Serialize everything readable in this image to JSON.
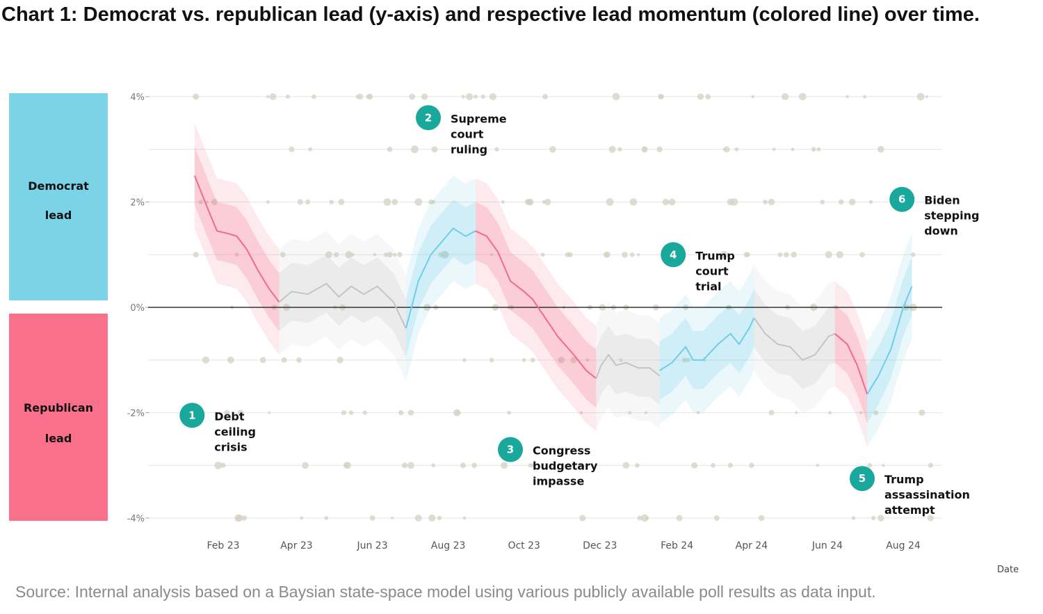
{
  "title": "Chart 1: Democrat vs. republican lead (y-axis) and respective lead momentum (colored line) over time.",
  "source": "Source: Internal analysis based on a Baysian state-space model using various publicly available poll results as data input.",
  "chart_data": {
    "type": "line",
    "xlabel": "Date",
    "ylabel": "",
    "ylim": [
      -4,
      4
    ],
    "xlim": [
      "2023-01-01",
      "2024-08-31"
    ],
    "y_ticks": [
      4,
      2,
      0,
      -2,
      -4
    ],
    "y_tick_labels": [
      "4%",
      "2%",
      "0%",
      "-2%",
      "-4%"
    ],
    "x_ticks": [
      "2023-02-01",
      "2023-04-01",
      "2023-06-01",
      "2023-08-01",
      "2023-10-01",
      "2023-12-01",
      "2024-02-01",
      "2024-04-01",
      "2024-06-01",
      "2024-08-01"
    ],
    "x_tick_labels": [
      "Feb 23",
      "Apr 23",
      "Jun 23",
      "Aug 23",
      "Oct 23",
      "Dec 23",
      "Feb 24",
      "Apr 24",
      "Jun 24",
      "Aug 24"
    ],
    "grid": true,
    "legend": {
      "position": "left",
      "entries": [
        {
          "label_lines": [
            "Democrat",
            "lead"
          ],
          "color": "#7ad3e6"
        },
        {
          "label_lines": [
            "Republican",
            "lead"
          ],
          "color": "#f8708c"
        }
      ]
    },
    "colors": {
      "democrat_momentum": "#6fcde6",
      "republican_momentum": "#f06a8a",
      "neutral": "#c4c4c4",
      "polls": "#d3d1c2",
      "marker": "#1aa89c"
    },
    "segments": [
      {
        "momentum": "republican",
        "points": [
          [
            "2023-01-09",
            2.5
          ],
          [
            "2023-01-20",
            1.85
          ],
          [
            "2023-01-27",
            1.45
          ],
          [
            "2023-02-05",
            1.4
          ],
          [
            "2023-02-12",
            1.35
          ],
          [
            "2023-02-20",
            1.1
          ],
          [
            "2023-03-01",
            0.7
          ],
          [
            "2023-03-10",
            0.35
          ],
          [
            "2023-03-18",
            0.1
          ]
        ]
      },
      {
        "momentum": "neutral",
        "points": [
          [
            "2023-03-18",
            0.1
          ],
          [
            "2023-03-28",
            0.3
          ],
          [
            "2023-04-10",
            0.25
          ],
          [
            "2023-04-25",
            0.45
          ],
          [
            "2023-05-05",
            0.2
          ],
          [
            "2023-05-15",
            0.4
          ],
          [
            "2023-05-25",
            0.25
          ],
          [
            "2023-06-05",
            0.4
          ],
          [
            "2023-06-18",
            0.1
          ],
          [
            "2023-06-28",
            -0.4
          ]
        ]
      },
      {
        "momentum": "democrat",
        "points": [
          [
            "2023-06-28",
            -0.4
          ],
          [
            "2023-07-08",
            0.5
          ],
          [
            "2023-07-18",
            1.0
          ],
          [
            "2023-08-05",
            1.5
          ],
          [
            "2023-08-15",
            1.35
          ],
          [
            "2023-08-23",
            1.45
          ]
        ]
      },
      {
        "momentum": "republican",
        "points": [
          [
            "2023-08-23",
            1.45
          ],
          [
            "2023-09-01",
            1.35
          ],
          [
            "2023-09-10",
            1.05
          ],
          [
            "2023-09-20",
            0.5
          ],
          [
            "2023-10-01",
            0.3
          ],
          [
            "2023-10-08",
            0.15
          ],
          [
            "2023-10-18",
            -0.2
          ],
          [
            "2023-10-28",
            -0.55
          ],
          [
            "2023-11-10",
            -0.9
          ],
          [
            "2023-11-20",
            -1.2
          ],
          [
            "2023-11-28",
            -1.35
          ]
        ]
      },
      {
        "momentum": "neutral",
        "points": [
          [
            "2023-11-28",
            -1.35
          ],
          [
            "2023-12-02",
            -1.1
          ],
          [
            "2023-12-08",
            -0.9
          ],
          [
            "2023-12-14",
            -1.1
          ],
          [
            "2023-12-22",
            -1.05
          ],
          [
            "2024-01-01",
            -1.15
          ],
          [
            "2024-01-10",
            -1.15
          ],
          [
            "2024-01-18",
            -1.3
          ]
        ]
      },
      {
        "momentum": "democrat",
        "points": [
          [
            "2024-01-18",
            -1.2
          ],
          [
            "2024-01-28",
            -1.05
          ],
          [
            "2024-02-08",
            -0.75
          ],
          [
            "2024-02-14",
            -1.0
          ],
          [
            "2024-02-22",
            -1.0
          ],
          [
            "2024-03-05",
            -0.7
          ],
          [
            "2024-03-15",
            -0.5
          ],
          [
            "2024-03-22",
            -0.7
          ],
          [
            "2024-03-30",
            -0.4
          ],
          [
            "2024-04-03",
            -0.2
          ]
        ]
      },
      {
        "momentum": "neutral",
        "points": [
          [
            "2024-04-03",
            -0.2
          ],
          [
            "2024-04-12",
            -0.5
          ],
          [
            "2024-04-22",
            -0.7
          ],
          [
            "2024-05-02",
            -0.75
          ],
          [
            "2024-05-12",
            -1.0
          ],
          [
            "2024-05-22",
            -0.9
          ],
          [
            "2024-06-02",
            -0.55
          ],
          [
            "2024-06-07",
            -0.5
          ]
        ]
      },
      {
        "momentum": "republican",
        "points": [
          [
            "2024-06-07",
            -0.5
          ],
          [
            "2024-06-17",
            -0.7
          ],
          [
            "2024-06-25",
            -1.1
          ],
          [
            "2024-07-03",
            -1.65
          ]
        ]
      },
      {
        "momentum": "democrat",
        "points": [
          [
            "2024-07-03",
            -1.65
          ],
          [
            "2024-07-12",
            -1.3
          ],
          [
            "2024-07-22",
            -0.8
          ],
          [
            "2024-08-01",
            0.0
          ],
          [
            "2024-08-08",
            0.4
          ]
        ]
      }
    ],
    "annotations": [
      {
        "number": "1",
        "lines": [
          "Debt",
          "ceiling",
          "crisis"
        ],
        "x": "2023-01-07",
        "y": -2.05
      },
      {
        "number": "2",
        "lines": [
          "Supreme",
          "court",
          "ruling"
        ],
        "x": "2023-07-16",
        "y": 3.6
      },
      {
        "number": "3",
        "lines": [
          "Congress",
          "budgetary",
          "impasse"
        ],
        "x": "2023-09-20",
        "y": -2.7
      },
      {
        "number": "4",
        "lines": [
          "Trump",
          "court",
          "trial"
        ],
        "x": "2024-01-29",
        "y": 1.0
      },
      {
        "number": "5",
        "lines": [
          "Trump",
          "assassination",
          "attempt"
        ],
        "x": "2024-06-29",
        "y": -3.25
      },
      {
        "number": "6",
        "lines": [
          "Biden",
          "stepping",
          "down"
        ],
        "x": "2024-07-31",
        "y": 2.05
      }
    ]
  }
}
